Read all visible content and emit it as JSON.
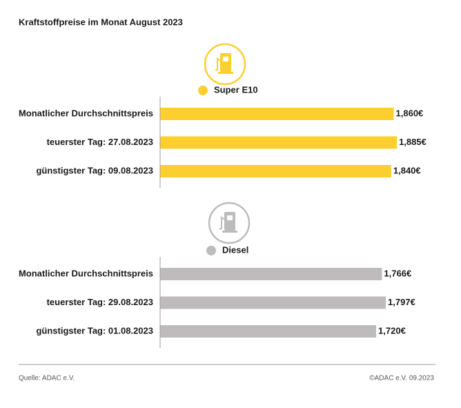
{
  "title": "Kraftstoffpreise im Monat August 2023",
  "chart_data": [
    {
      "type": "bar",
      "categories": [
        "Monatlicher Durchschnittspreis",
        "teuerster Tag: 27.08.2023",
        "günstigster Tag: 09.08.2023"
      ],
      "series": [
        {
          "name": "Super E10",
          "color": "#fccf2e",
          "values": [
            1.86,
            1.885,
            1.84
          ],
          "value_labels": [
            "1,860€",
            "1,885€",
            "1,840€"
          ]
        }
      ],
      "xlim": [
        0,
        2
      ]
    },
    {
      "type": "bar",
      "categories": [
        "Monatlicher Durchschnittspreis",
        "teuerster Tag: 29.08.2023",
        "günstigster Tag: 01.08.2023"
      ],
      "series": [
        {
          "name": "Diesel",
          "color": "#bdbbbb",
          "values": [
            1.766,
            1.797,
            1.72
          ],
          "value_labels": [
            "1,766€",
            "1,797€",
            "1,720€"
          ]
        }
      ],
      "xlim": [
        0,
        2
      ]
    }
  ],
  "source": "Quelle: ADAC e.V.",
  "copyright": "©ADAC e.V. 09.2023"
}
